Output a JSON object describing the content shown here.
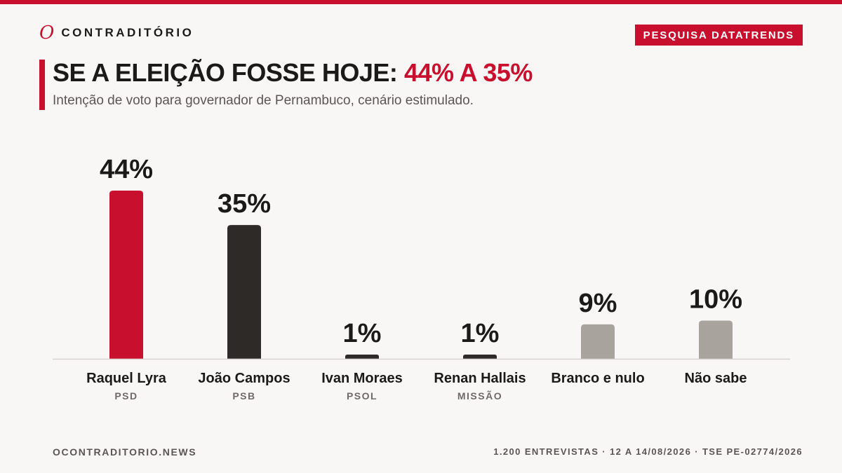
{
  "brand": {
    "mark": "O",
    "name": "CONTRADITÓRIO"
  },
  "badge": "PESQUISA DATATRENDS",
  "title": {
    "main": "SE A ELEIÇÃO FOSSE HOJE:",
    "highlight": "44% A 35%"
  },
  "subtitle": "Intenção de voto para governador de Pernambuco, cenário estimulado.",
  "chart_data": {
    "type": "bar",
    "categories": [
      "Raquel Lyra",
      "João Campos",
      "Ivan Moraes",
      "Renan Hallais",
      "Branco e nulo",
      "Não sabe"
    ],
    "parties": [
      "PSD",
      "PSB",
      "PSOL",
      "MISSÃO",
      "",
      ""
    ],
    "values": [
      44,
      35,
      1,
      1,
      9,
      10
    ],
    "value_labels": [
      "44%",
      "35%",
      "1%",
      "1%",
      "9%",
      "10%"
    ],
    "colors": [
      "#c8102e",
      "#2e2a28",
      "#2e2a28",
      "#2e2a28",
      "#a9a39e",
      "#a9a39e"
    ],
    "unit": "%",
    "title": "",
    "xlabel": "",
    "ylabel": "",
    "ylim": [
      0,
      44
    ],
    "grid": false,
    "legend": "none"
  },
  "footer": {
    "site": "OCONTRADITORIO.NEWS",
    "details": "1.200 ENTREVISTAS · 12 A 14/08/2026 · TSE PE-02774/2026"
  }
}
